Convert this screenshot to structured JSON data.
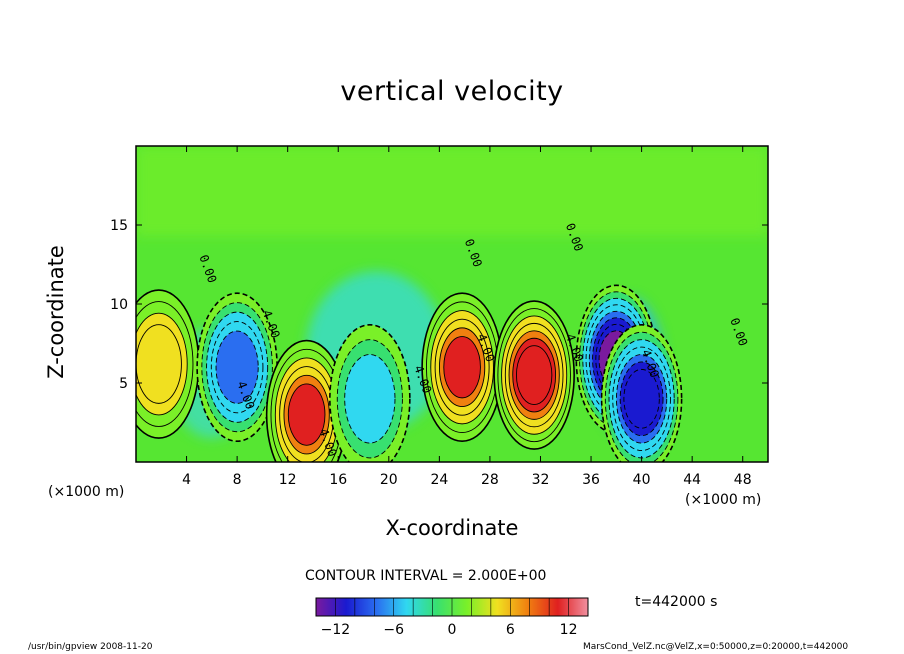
{
  "chart_data": {
    "type": "heatmap",
    "title": "vertical velocity",
    "xlabel": "X-coordinate",
    "ylabel": "Z-coordinate",
    "x_unit_left": "(×1000 m)",
    "x_unit_right": "(×1000 m)",
    "xlim": [
      0,
      50
    ],
    "ylim": [
      0,
      20
    ],
    "x_ticks": [
      4,
      8,
      12,
      16,
      20,
      24,
      28,
      32,
      36,
      40,
      44,
      48
    ],
    "y_ticks": [
      5,
      10,
      15
    ],
    "contour_interval_text": "CONTOUR INTERVAL = 2.000E+00",
    "colorbar": {
      "min": -14,
      "max": 14,
      "ticks": [
        -12,
        -6,
        0,
        6,
        12
      ],
      "stops": [
        "#7a1a9e",
        "#1a1ad0",
        "#2a6ef0",
        "#30d8f0",
        "#38e070",
        "#7af028",
        "#f0e020",
        "#f08010",
        "#e02020",
        "#f090a0"
      ]
    },
    "contour_labels": [
      "0.00",
      "0.00",
      "0.00",
      "0.00",
      "4.00",
      "4.00",
      "4.00",
      "4.00",
      "4.00",
      "4.00",
      "4.00"
    ],
    "features": [
      {
        "x": 1.8,
        "z": 6.2,
        "w": 7
      },
      {
        "x": 8.0,
        "z": 6.0,
        "w": -9
      },
      {
        "x": 13.5,
        "z": 3.0,
        "w": 10
      },
      {
        "x": 18.5,
        "z": 4.0,
        "w": -5
      },
      {
        "x": 25.8,
        "z": 6.0,
        "w": 10
      },
      {
        "x": 31.5,
        "z": 5.5,
        "w": 12
      },
      {
        "x": 38.0,
        "z": 6.5,
        "w": -14
      },
      {
        "x": 40.0,
        "z": 4.0,
        "w": -12
      }
    ],
    "time_label": "t=442000 s",
    "footer_left": "/usr/bin/gpview   2008-11-20",
    "footer_right": "MarsCond_VelZ.nc@VelZ,x=0:50000,z=0:20000,t=442000"
  }
}
